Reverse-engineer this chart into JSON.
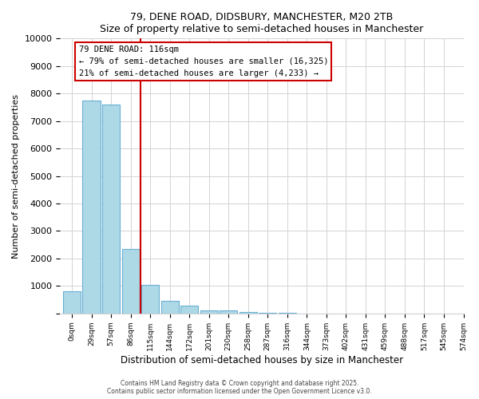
{
  "title1": "79, DENE ROAD, DIDSBURY, MANCHESTER, M20 2TB",
  "title2": "Size of property relative to semi-detached houses in Manchester",
  "xlabel": "Distribution of semi-detached houses by size in Manchester",
  "ylabel": "Number of semi-detached properties",
  "bar_values": [
    800,
    7750,
    7600,
    2350,
    1050,
    450,
    280,
    120,
    100,
    50,
    30,
    15,
    10,
    5,
    5,
    5,
    5,
    5,
    5,
    5
  ],
  "bin_labels": [
    "0sqm",
    "29sqm",
    "57sqm",
    "86sqm",
    "115sqm",
    "144sqm",
    "172sqm",
    "201sqm",
    "230sqm",
    "258sqm",
    "287sqm",
    "316sqm",
    "344sqm",
    "373sqm",
    "402sqm",
    "431sqm",
    "459sqm",
    "488sqm",
    "517sqm",
    "545sqm"
  ],
  "bar_color": "#add8e6",
  "bar_edge_color": "#6ab0d4",
  "marker_value": 116,
  "annotation_title": "79 DENE ROAD: 116sqm",
  "annotation_line1": "← 79% of semi-detached houses are smaller (16,325)",
  "annotation_line2": "21% of semi-detached houses are larger (4,233) →",
  "annotation_box_color": "#ffffff",
  "annotation_box_edge": "#cc0000",
  "ylim": [
    0,
    10000
  ],
  "yticks": [
    0,
    1000,
    2000,
    3000,
    4000,
    5000,
    6000,
    7000,
    8000,
    9000,
    10000
  ],
  "footer1": "Contains HM Land Registry data © Crown copyright and database right 2025.",
  "footer2": "Contains public sector information licensed under the Open Government Licence v3.0."
}
